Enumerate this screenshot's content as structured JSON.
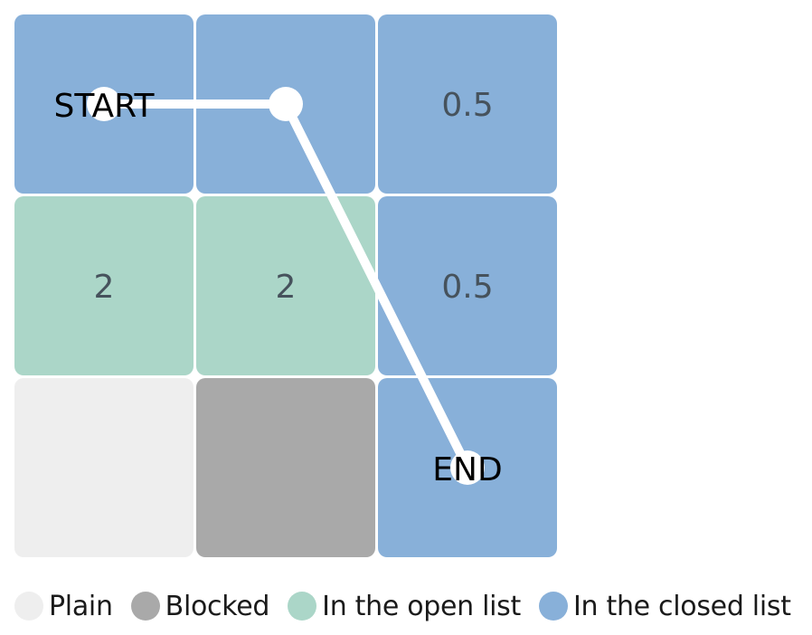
{
  "grid": {
    "rows": 3,
    "cols": 3,
    "cells": [
      {
        "row": 0,
        "col": 0,
        "state": "closed",
        "label": ""
      },
      {
        "row": 0,
        "col": 1,
        "state": "closed",
        "label": ""
      },
      {
        "row": 0,
        "col": 2,
        "state": "closed",
        "label": "0.5"
      },
      {
        "row": 1,
        "col": 0,
        "state": "open",
        "label": "2"
      },
      {
        "row": 1,
        "col": 1,
        "state": "open",
        "label": "2"
      },
      {
        "row": 1,
        "col": 2,
        "state": "closed",
        "label": "0.5"
      },
      {
        "row": 2,
        "col": 0,
        "state": "plain",
        "label": ""
      },
      {
        "row": 2,
        "col": 1,
        "state": "blocked",
        "label": ""
      },
      {
        "row": 2,
        "col": 2,
        "state": "closed",
        "label": ""
      }
    ]
  },
  "path": {
    "points": [
      {
        "row": 0,
        "col": 0
      },
      {
        "row": 0,
        "col": 1
      },
      {
        "row": 2,
        "col": 2
      }
    ],
    "color": "#ffffff"
  },
  "markers": {
    "start": {
      "row": 0,
      "col": 0,
      "label": "START"
    },
    "end": {
      "row": 2,
      "col": 2,
      "label": "END"
    }
  },
  "colors": {
    "plain": "#eeeeee",
    "blocked": "#a9a9a9",
    "open": "#abd6c8",
    "closed": "#88b0d9"
  },
  "legend": [
    {
      "key": "plain",
      "label": "Plain"
    },
    {
      "key": "blocked",
      "label": "Blocked"
    },
    {
      "key": "open",
      "label": "In the open list"
    },
    {
      "key": "closed",
      "label": "In the closed list"
    }
  ]
}
